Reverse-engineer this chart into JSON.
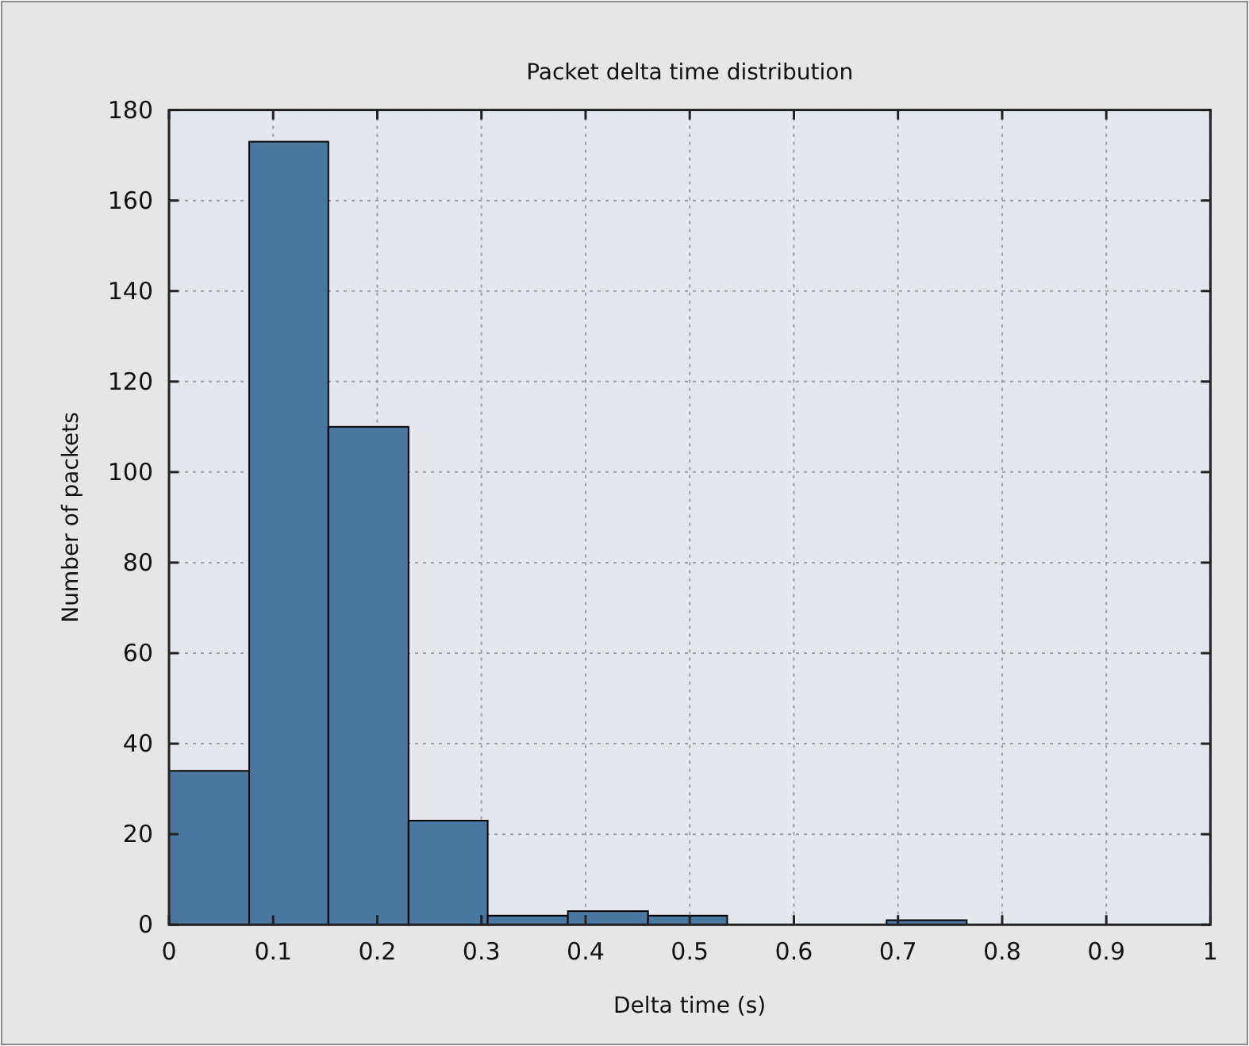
{
  "chart_data": {
    "type": "histogram",
    "title": "Packet delta time distribution",
    "xlabel": "Delta time (s)",
    "ylabel": "Number of packets",
    "bins": [
      0,
      0.077,
      0.153,
      0.23,
      0.306,
      0.383,
      0.46,
      0.536,
      0.689,
      0.766
    ],
    "values": [
      34,
      173,
      110,
      23,
      2,
      3,
      2,
      0,
      1
    ],
    "color": "#4a77a0",
    "xlim": [
      0,
      1
    ],
    "xticks": [
      0,
      0.1,
      0.2,
      0.3,
      0.4,
      0.5,
      0.6,
      0.7,
      0.8,
      0.9,
      1
    ],
    "ylim": [
      0,
      180
    ],
    "yticks": [
      0,
      20,
      40,
      60,
      80,
      100,
      120,
      140,
      160,
      180
    ],
    "grid": true
  }
}
